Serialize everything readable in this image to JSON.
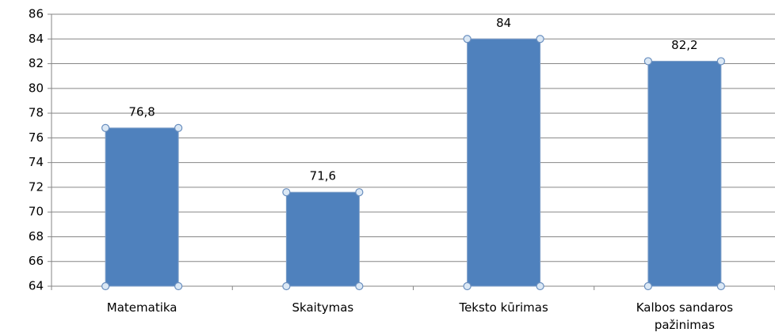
{
  "chart_data": {
    "type": "bar",
    "categories": [
      "Matematika",
      "Skaitymas",
      "Teksto kūrimas",
      "Kalbos sandaros pažinimas"
    ],
    "values": [
      76.8,
      71.6,
      84,
      82.2
    ],
    "value_labels": [
      "76,8",
      "71,6",
      "84",
      "82,2"
    ],
    "color": "#4f81bd",
    "ylim": [
      64,
      86
    ],
    "yticks": [
      64,
      66,
      68,
      70,
      72,
      74,
      76,
      78,
      80,
      82,
      84,
      86
    ],
    "grid": true
  }
}
